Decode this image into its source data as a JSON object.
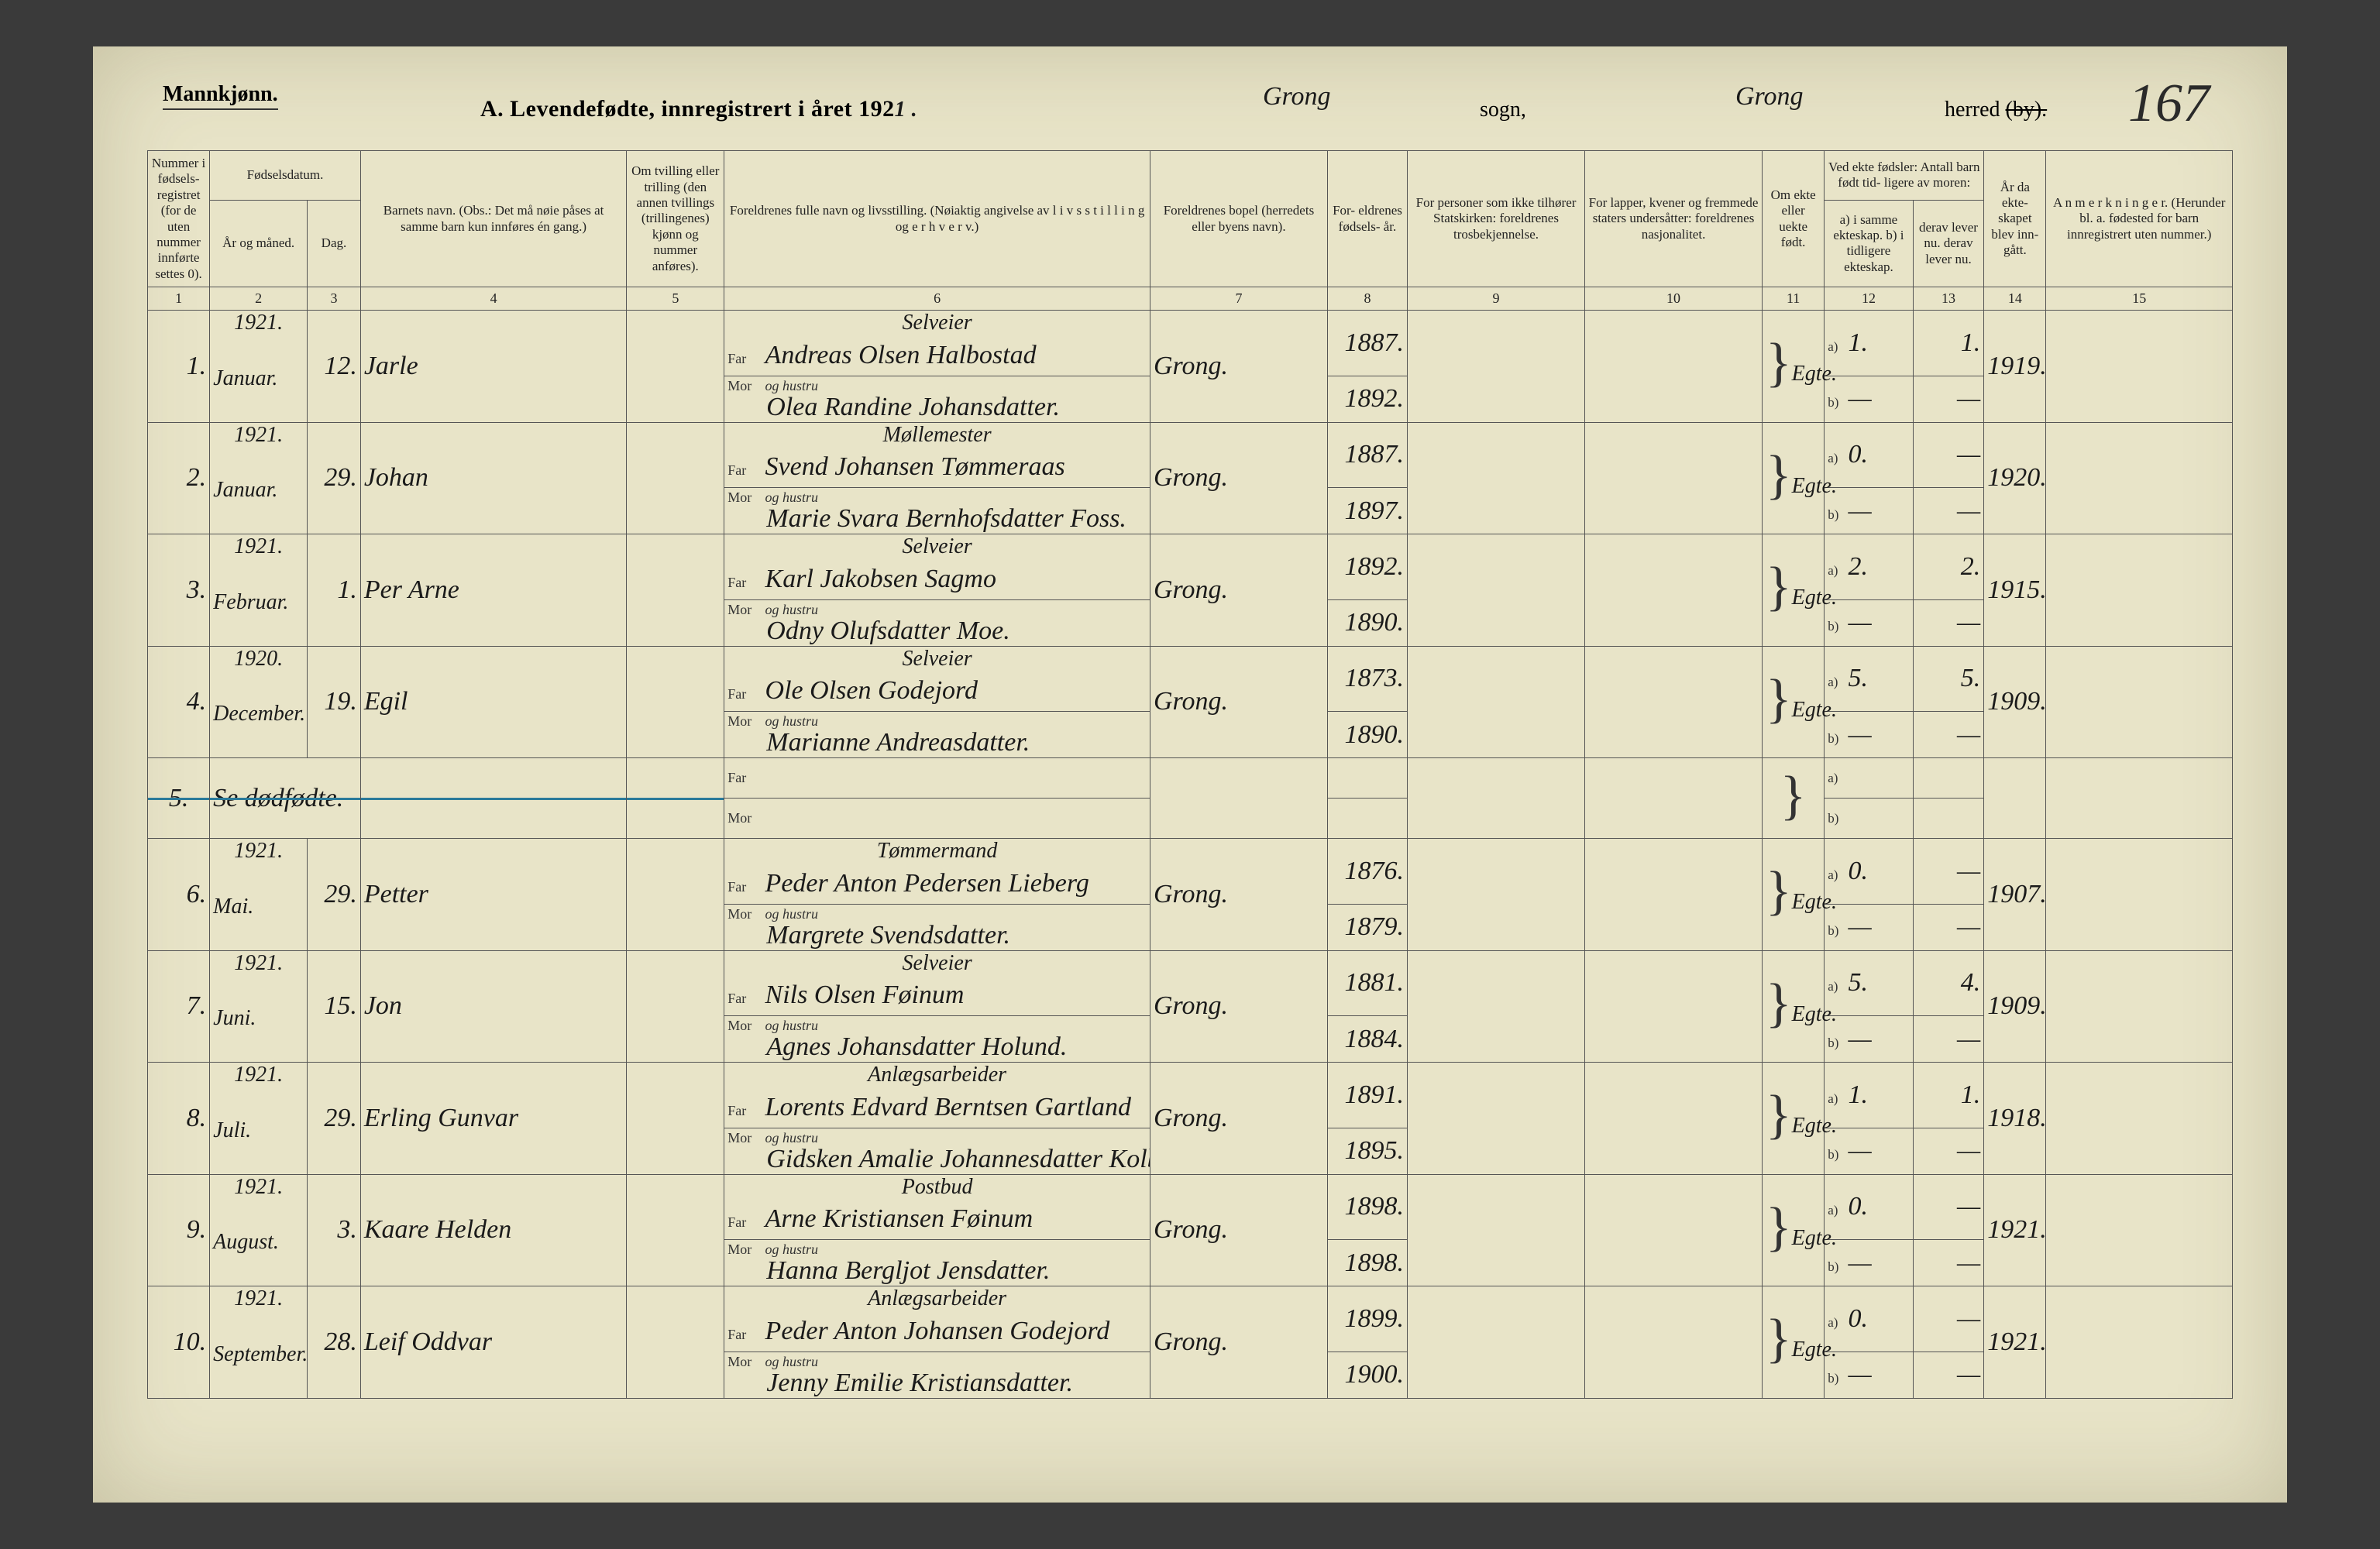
{
  "page": {
    "gender_label": "Mannkjønn.",
    "title_printed": "A.  Levendefødte, innregistrert i året 192",
    "title_year_suffix": "1 .",
    "sogn_hw": "Grong",
    "sogn_label": "sogn,",
    "herred_hw": "Grong",
    "herred_label": "herred",
    "by_struck": "(by).",
    "page_number": "167"
  },
  "headers": {
    "c1": "Nummer i fødsels- registret (for de uten nummer innførte settes 0).",
    "c2_top": "Fødselsdatum.",
    "c2a": "År og måned.",
    "c2b": "Dag.",
    "c4": "Barnets navn.\n(Obs.: Det må nøie påses at samme barn kun innføres én gang.)",
    "c5": "Om tvilling eller trilling (den annen tvillings (trillingenes) kjønn og nummer anføres).",
    "c6": "Foreldrenes fulle navn og livsstilling.\n(Nøiaktig angivelse av  l i v s s t i l l i n g  og  e r h v e r v.)",
    "c7": "Foreldrenes bopel\n(herredets eller byens navn).",
    "c8": "For- eldrenes fødsels- år.",
    "c9": "For personer som ikke tilhører Statskirken: foreldrenes trosbekjennelse.",
    "c10": "For lapper, kvener og fremmede staters undersåtter: foreldrenes nasjonalitet.",
    "c11": "Om ekte eller uekte født.",
    "c12_top": "Ved ekte fødsler:\nAntall barn født tid- ligere av moren:",
    "c12a": "a) i samme ekteskap.\nb) i tidligere ekteskap.",
    "c13": "derav lever nu.\nderav lever nu.",
    "c14": "År da ekte- skapet blev inn- gått.",
    "c15": "A n m e r k n i n g e r.\n(Herunder bl. a. fødested for barn innregistrert uten nummer.)"
  },
  "colnums": [
    "1",
    "2",
    "3",
    "4",
    "5",
    "6",
    "7",
    "8",
    "9",
    "10",
    "11",
    "12",
    "13",
    "14",
    "15"
  ],
  "rows": [
    {
      "num": "1.",
      "year": "1921.",
      "month": "Januar.",
      "day": "12.",
      "child": "Jarle",
      "occ": "Selveier",
      "far": "Andreas Olsen Halbostad",
      "mor_rel": "og hustru",
      "mor": "Olea Randine Johansdatter.",
      "bopel": "Grong.",
      "far_yr": "1887.",
      "mor_yr": "1892.",
      "ekte": "Egte.",
      "a12": "1.",
      "a13": "1.",
      "b12": "—",
      "b13": "—",
      "c14": "1919."
    },
    {
      "num": "2.",
      "year": "1921.",
      "month": "Januar.",
      "day": "29.",
      "child": "Johan",
      "occ": "Møllemester",
      "far": "Svend Johansen Tømmeraas",
      "mor_rel": "og hustru",
      "mor": "Marie Svara Bernhofsdatter Foss.",
      "bopel": "Grong.",
      "far_yr": "1887.",
      "mor_yr": "1897.",
      "ekte": "Egte.",
      "a12": "0.",
      "a13": "—",
      "b12": "—",
      "b13": "—",
      "c14": "1920."
    },
    {
      "num": "3.",
      "year": "1921.",
      "month": "Februar.",
      "day": "1.",
      "child": "Per Arne",
      "occ": "Selveier",
      "far": "Karl Jakobsen Sagmo",
      "mor_rel": "og hustru",
      "mor": "Odny Olufsdatter Moe.",
      "bopel": "Grong.",
      "far_yr": "1892.",
      "mor_yr": "1890.",
      "ekte": "Egte.",
      "a12": "2.",
      "a13": "2.",
      "b12": "—",
      "b13": "—",
      "c14": "1915."
    },
    {
      "num": "4.",
      "year": "1920.",
      "month": "December.",
      "day": "19.",
      "child": "Egil",
      "occ": "Selveier",
      "far": "Ole Olsen Godejord",
      "mor_rel": "og hustru",
      "mor": "Marianne Andreasdatter.",
      "bopel": "Grong.",
      "far_yr": "1873.",
      "mor_yr": "1890.",
      "ekte": "Egte.",
      "a12": "5.",
      "a13": "5.",
      "b12": "—",
      "b13": "—",
      "c14": "1909."
    },
    {
      "num": "5.",
      "strike": true,
      "note": "Se dødfødte.",
      "year": "",
      "month": "",
      "day": "",
      "child": "",
      "occ": "",
      "far": "",
      "mor_rel": "",
      "mor": "",
      "bopel": "",
      "far_yr": "",
      "mor_yr": "",
      "ekte": "",
      "a12": "",
      "a13": "",
      "b12": "",
      "b13": "",
      "c14": ""
    },
    {
      "num": "6.",
      "year": "1921.",
      "month": "Mai.",
      "day": "29.",
      "child": "Petter",
      "occ": "Tømmermand",
      "far": "Peder Anton Pedersen Lieberg",
      "mor_rel": "og hustru",
      "mor": "Margrete Svendsdatter.",
      "bopel": "Grong.",
      "far_yr": "1876.",
      "mor_yr": "1879.",
      "ekte": "Egte.",
      "a12": "0.",
      "a13": "—",
      "b12": "—",
      "b13": "—",
      "c14": "1907."
    },
    {
      "num": "7.",
      "year": "1921.",
      "month": "Juni.",
      "day": "15.",
      "child": "Jon",
      "occ": "Selveier",
      "far": "Nils Olsen Føinum",
      "mor_rel": "og hustru",
      "mor": "Agnes Johansdatter Holund.",
      "bopel": "Grong.",
      "far_yr": "1881.",
      "mor_yr": "1884.",
      "ekte": "Egte.",
      "a12": "5.",
      "a13": "4.",
      "b12": "—",
      "b13": "—",
      "c14": "1909."
    },
    {
      "num": "8.",
      "year": "1921.",
      "month": "Juli.",
      "day": "29.",
      "child": "Erling Gunvar",
      "occ": "Anlægsarbeider",
      "far": "Lorents Edvard Berntsen Gartland",
      "mor_rel": "og hustru",
      "mor": "Gidsken Amalie Johannesdatter Kolberg.",
      "bopel": "Grong.",
      "far_yr": "1891.",
      "mor_yr": "1895.",
      "ekte": "Egte.",
      "a12": "1.",
      "a13": "1.",
      "b12": "—",
      "b13": "—",
      "c14": "1918."
    },
    {
      "num": "9.",
      "year": "1921.",
      "month": "August.",
      "day": "3.",
      "child": "Kaare Helden",
      "occ": "Postbud",
      "far": "Arne Kristiansen Føinum",
      "mor_rel": "og hustru",
      "mor": "Hanna Bergljot Jensdatter.",
      "bopel": "Grong.",
      "far_yr": "1898.",
      "mor_yr": "1898.",
      "ekte": "Egte.",
      "a12": "0.",
      "a13": "—",
      "b12": "—",
      "b13": "—",
      "c14": "1921."
    },
    {
      "num": "10.",
      "year": "1921.",
      "month": "September.",
      "day": "28.",
      "child": "Leif Oddvar",
      "occ": "Anlægsarbeider",
      "far": "Peder Anton Johansen Godejord",
      "mor_rel": "og hustru",
      "mor": "Jenny Emilie Kristiansdatter.",
      "bopel": "Grong.",
      "far_yr": "1899.",
      "mor_yr": "1900.",
      "ekte": "Egte.",
      "a12": "0.",
      "a13": "—",
      "b12": "—",
      "b13": "—",
      "c14": "1921."
    }
  ],
  "labels": {
    "far": "Far",
    "mor": "Mor",
    "a": "a)",
    "b": "b)"
  }
}
